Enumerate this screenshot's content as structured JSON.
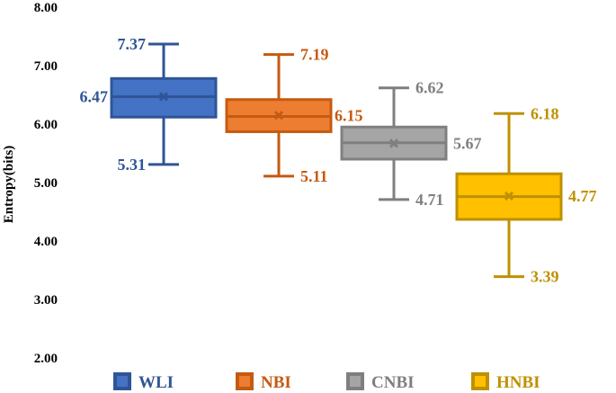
{
  "chart_data": {
    "type": "box",
    "ylabel": "Entropy(bits)",
    "ylim": [
      2,
      8
    ],
    "yticks": [
      "2.00",
      "3.00",
      "4.00",
      "5.00",
      "6.00",
      "7.00",
      "8.00"
    ],
    "grid": false,
    "legend_position": "bottom",
    "series": [
      {
        "name": "WLI",
        "color": "#4472c4",
        "min": 5.31,
        "q1": 6.12,
        "median": 6.47,
        "q3": 6.78,
        "max": 7.37,
        "mean": 6.47,
        "labels": [
          "7.37",
          "6.47",
          "5.31"
        ]
      },
      {
        "name": "NBI",
        "color": "#ed7d31",
        "min": 5.11,
        "q1": 5.87,
        "median": 6.13,
        "q3": 6.42,
        "max": 7.19,
        "mean": 6.15,
        "labels": [
          "7.19",
          "6.15",
          "5.11"
        ]
      },
      {
        "name": "CNBI",
        "color": "#a5a5a5",
        "min": 4.71,
        "q1": 5.4,
        "median": 5.68,
        "q3": 5.95,
        "max": 6.62,
        "mean": 5.67,
        "labels": [
          "6.62",
          "5.67",
          "4.71"
        ]
      },
      {
        "name": "HNBI",
        "color": "#ffc000",
        "min": 3.39,
        "q1": 4.37,
        "median": 4.76,
        "q3": 5.15,
        "max": 6.18,
        "mean": 4.77,
        "labels": [
          "6.18",
          "4.77",
          "3.39"
        ]
      }
    ]
  },
  "colors": {
    "label_wli": "#2f5597",
    "label_nbi": "#c55a11",
    "label_cnbi": "#7f7f7f",
    "label_hnbi": "#bf9000",
    "axis": "#d9d9d9"
  }
}
